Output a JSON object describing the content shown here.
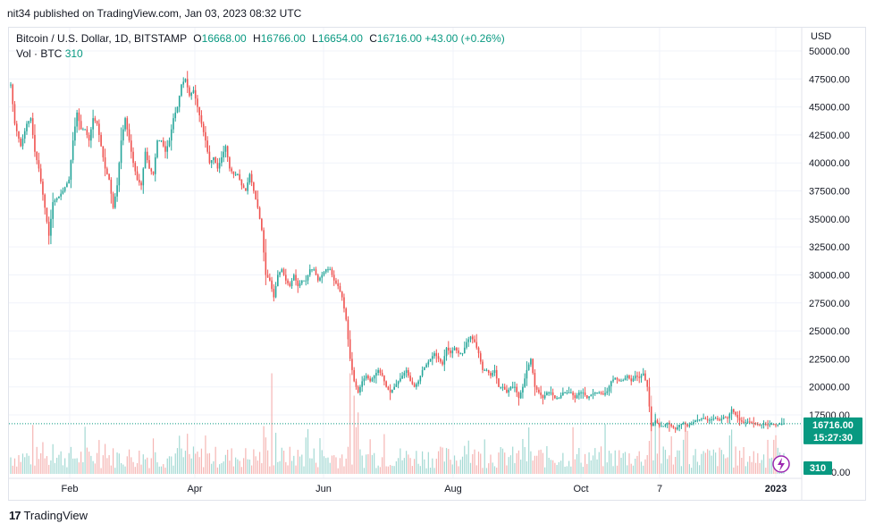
{
  "header": {
    "published": "nit34 published on TradingView.com, Jan 03, 2023 08:32 UTC"
  },
  "legend": {
    "symbol": "Bitcoin / U.S. Dollar, 1D, BITSTAMP",
    "o_label": "O",
    "o_value": "16668.00",
    "h_label": "H",
    "h_value": "16766.00",
    "l_label": "L",
    "l_value": "16654.00",
    "c_label": "C",
    "c_value": "16716.00",
    "change": "+43.00 (+0.26%)",
    "vol_label": "Vol · BTC",
    "vol_value": "310"
  },
  "currency": "USD",
  "footer": {
    "brand": "TradingView"
  },
  "colors": {
    "up": "#26a69a",
    "down": "#ef5350",
    "up_vol": "#a3d9d3",
    "down_vol": "#f5b5b3",
    "badge": "#089981",
    "accent": "#9c27b0"
  },
  "chart_data": {
    "type": "candlestick",
    "y_ticks": [
      "50000.00",
      "47500.00",
      "45000.00",
      "42500.00",
      "40000.00",
      "37500.00",
      "35000.00",
      "32500.00",
      "30000.00",
      "27500.00",
      "25000.00",
      "22500.00",
      "20000.00",
      "17500.00"
    ],
    "x_ticks": [
      "Feb",
      "Apr",
      "Jun",
      "Aug",
      "Oct",
      "7",
      "2023"
    ],
    "ylim": [
      15800,
      50000
    ],
    "last_price_badge": "16716.00",
    "countdown_badge": "15:27:30",
    "volume_badge": "310",
    "volume_axis_label": "0.00",
    "close_path": [
      [
        0,
        47000
      ],
      [
        2,
        43500
      ],
      [
        5,
        41500
      ],
      [
        8,
        43500
      ],
      [
        10,
        44000
      ],
      [
        12,
        41000
      ],
      [
        14,
        39500
      ],
      [
        17,
        36000
      ],
      [
        19,
        33500
      ],
      [
        21,
        36500
      ],
      [
        24,
        37000
      ],
      [
        26,
        37500
      ],
      [
        29,
        38500
      ],
      [
        31,
        42000
      ],
      [
        33,
        44500
      ],
      [
        35,
        43000
      ],
      [
        37,
        43000
      ],
      [
        39,
        42000
      ],
      [
        41,
        44000
      ],
      [
        43,
        43500
      ],
      [
        45,
        41500
      ],
      [
        47,
        39500
      ],
      [
        49,
        38500
      ],
      [
        51,
        36000
      ],
      [
        53,
        38000
      ],
      [
        55,
        42000
      ],
      [
        57,
        44000
      ],
      [
        59,
        42000
      ],
      [
        61,
        40000
      ],
      [
        63,
        38500
      ],
      [
        65,
        38000
      ],
      [
        67,
        41000
      ],
      [
        69,
        39500
      ],
      [
        71,
        39000
      ],
      [
        73,
        42000
      ],
      [
        75,
        42000
      ],
      [
        77,
        41000
      ],
      [
        79,
        42000
      ],
      [
        81,
        44000
      ],
      [
        83,
        45000
      ],
      [
        85,
        47000
      ],
      [
        87,
        47500
      ],
      [
        89,
        46000
      ],
      [
        91,
        46500
      ],
      [
        93,
        45000
      ],
      [
        95,
        43500
      ],
      [
        97,
        42000
      ],
      [
        99,
        40000
      ],
      [
        101,
        40500
      ],
      [
        103,
        39500
      ],
      [
        105,
        40500
      ],
      [
        107,
        41500
      ],
      [
        109,
        39500
      ],
      [
        111,
        39000
      ],
      [
        113,
        39000
      ],
      [
        115,
        38000
      ],
      [
        117,
        37500
      ],
      [
        119,
        39000
      ],
      [
        121,
        37500
      ],
      [
        123,
        36000
      ],
      [
        125,
        34000
      ],
      [
        127,
        30000
      ],
      [
        129,
        29500
      ],
      [
        131,
        28000
      ],
      [
        133,
        30000
      ],
      [
        135,
        30500
      ],
      [
        137,
        29500
      ],
      [
        139,
        29000
      ],
      [
        141,
        30000
      ],
      [
        143,
        29000
      ],
      [
        145,
        29500
      ],
      [
        147,
        29500
      ],
      [
        149,
        30500
      ],
      [
        151,
        30500
      ],
      [
        153,
        29500
      ],
      [
        155,
        30000
      ],
      [
        157,
        30500
      ],
      [
        159,
        30500
      ],
      [
        161,
        29500
      ],
      [
        163,
        29000
      ],
      [
        165,
        28000
      ],
      [
        167,
        26000
      ],
      [
        169,
        22500
      ],
      [
        171,
        20500
      ],
      [
        173,
        19500
      ],
      [
        175,
        20500
      ],
      [
        177,
        21000
      ],
      [
        179,
        20500
      ],
      [
        181,
        21000
      ],
      [
        183,
        21500
      ],
      [
        185,
        21000
      ],
      [
        187,
        20000
      ],
      [
        189,
        19500
      ],
      [
        191,
        20000
      ],
      [
        193,
        20500
      ],
      [
        195,
        21000
      ],
      [
        197,
        21500
      ],
      [
        199,
        20500
      ],
      [
        201,
        20000
      ],
      [
        203,
        20500
      ],
      [
        205,
        21500
      ],
      [
        207,
        22000
      ],
      [
        209,
        22500
      ],
      [
        211,
        23000
      ],
      [
        213,
        22500
      ],
      [
        215,
        22000
      ],
      [
        217,
        23500
      ],
      [
        219,
        23000
      ],
      [
        221,
        23500
      ],
      [
        223,
        23000
      ],
      [
        225,
        23000
      ],
      [
        227,
        24000
      ],
      [
        229,
        24500
      ],
      [
        231,
        24000
      ],
      [
        233,
        23000
      ],
      [
        235,
        21500
      ],
      [
        237,
        21500
      ],
      [
        239,
        21000
      ],
      [
        241,
        21500
      ],
      [
        243,
        20000
      ],
      [
        245,
        20000
      ],
      [
        247,
        19500
      ],
      [
        249,
        20000
      ],
      [
        251,
        20000
      ],
      [
        253,
        19000
      ],
      [
        255,
        20000
      ],
      [
        257,
        21500
      ],
      [
        259,
        22500
      ],
      [
        261,
        20000
      ],
      [
        263,
        19500
      ],
      [
        265,
        19000
      ],
      [
        267,
        19500
      ],
      [
        269,
        19500
      ],
      [
        271,
        19000
      ],
      [
        273,
        19000
      ],
      [
        275,
        19500
      ],
      [
        277,
        19500
      ],
      [
        279,
        19500
      ],
      [
        281,
        19000
      ],
      [
        283,
        19500
      ],
      [
        285,
        19500
      ],
      [
        287,
        19000
      ],
      [
        289,
        19300
      ],
      [
        291,
        19500
      ],
      [
        293,
        19500
      ],
      [
        295,
        19300
      ],
      [
        297,
        19600
      ],
      [
        299,
        20500
      ],
      [
        301,
        20800
      ],
      [
        303,
        20500
      ],
      [
        305,
        20600
      ],
      [
        307,
        21000
      ],
      [
        309,
        20500
      ],
      [
        311,
        21000
      ],
      [
        313,
        20800
      ],
      [
        315,
        21200
      ],
      [
        317,
        20000
      ],
      [
        319,
        16500
      ],
      [
        321,
        17000
      ],
      [
        323,
        16500
      ],
      [
        325,
        16500
      ],
      [
        327,
        16800
      ],
      [
        329,
        16500
      ],
      [
        331,
        16200
      ],
      [
        333,
        16600
      ],
      [
        335,
        16800
      ],
      [
        337,
        16500
      ],
      [
        339,
        16700
      ],
      [
        341,
        17000
      ],
      [
        343,
        17100
      ],
      [
        345,
        17200
      ],
      [
        347,
        17000
      ],
      [
        349,
        17100
      ],
      [
        351,
        17200
      ],
      [
        353,
        17000
      ],
      [
        355,
        17300
      ],
      [
        357,
        17200
      ],
      [
        359,
        18000
      ],
      [
        361,
        17500
      ],
      [
        363,
        17000
      ],
      [
        365,
        16800
      ],
      [
        367,
        16900
      ],
      [
        369,
        16800
      ],
      [
        371,
        16700
      ],
      [
        373,
        16600
      ],
      [
        375,
        16700
      ],
      [
        377,
        16600
      ],
      [
        379,
        16700
      ],
      [
        381,
        16600
      ],
      [
        383,
        16700
      ],
      [
        385,
        16716
      ]
    ],
    "volume_spikes": [
      [
        130,
        0.9
      ],
      [
        169,
        0.9
      ],
      [
        171,
        0.7
      ],
      [
        173,
        0.55
      ],
      [
        319,
        0.7
      ],
      [
        321,
        0.55
      ],
      [
        323,
        0.5
      ]
    ]
  }
}
